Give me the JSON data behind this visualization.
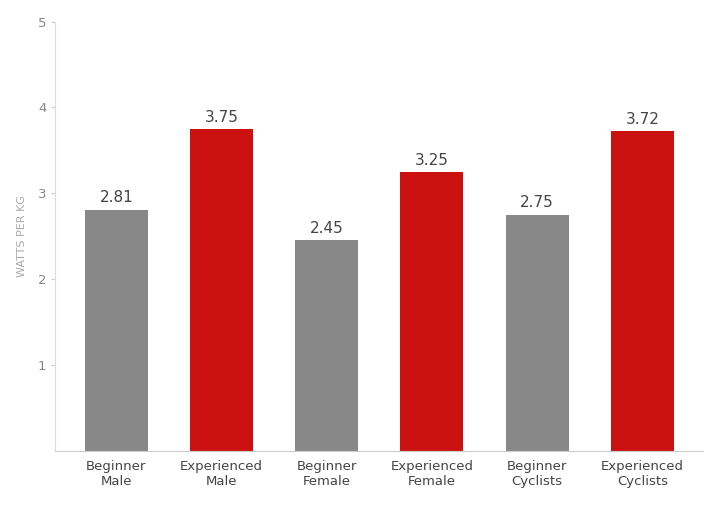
{
  "categories": [
    "Beginner\nMale",
    "Experienced\nMale",
    "Beginner\nFemale",
    "Experienced\nFemale",
    "Beginner\nCyclists",
    "Experienced\nCyclists"
  ],
  "values": [
    2.81,
    3.75,
    2.45,
    3.25,
    2.75,
    3.72
  ],
  "colors": [
    "#888888",
    "#cc1111",
    "#888888",
    "#cc1111",
    "#888888",
    "#cc1111"
  ],
  "ylabel": "WATTS PER KG",
  "ylim": [
    0,
    5
  ],
  "yticks": [
    1,
    2,
    3,
    4,
    5
  ],
  "background_color": "#ffffff",
  "bar_width": 0.6,
  "label_fontsize": 11,
  "tick_label_fontsize": 9.5,
  "ylabel_fontsize": 8,
  "value_label_color": "#444444"
}
